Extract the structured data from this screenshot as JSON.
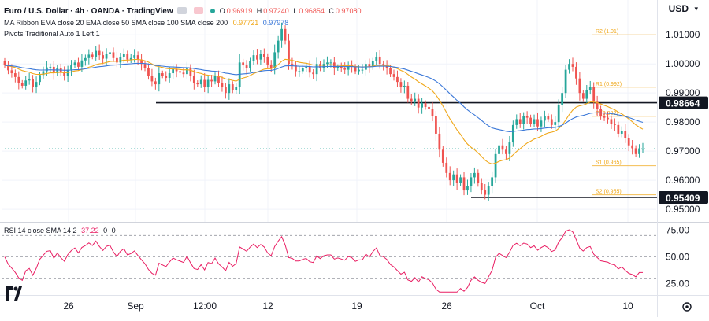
{
  "header": {
    "symbol_title": "Euro / U.S. Dollar",
    "interval": "4h",
    "exchange": "OANDA",
    "platform": "TradingView",
    "ohlc": {
      "O": "0.96919",
      "H": "0.97240",
      "L": "0.96854",
      "C": "0.97080"
    },
    "ma_ribbon_label": "MA Ribbon EMA close 20 EMA close 50 SMA close 100 SMA close 200",
    "ma_ribbon_values": [
      "0.97721",
      "0.97978"
    ],
    "pivots_label": "Pivots Traditional Auto 1 Left 1",
    "rsi_label": "RSI 14 close SMA 14 2",
    "rsi_values": [
      "37.22",
      "0",
      "0"
    ],
    "currency": "USD"
  },
  "colors": {
    "up": "#26a69a",
    "down": "#ef5350",
    "ema20": "#f0a81a",
    "ema50": "#3b78d8",
    "pivot": "#f0a81a",
    "rsi": "#e91e63",
    "level": "#131722"
  },
  "chart_data": [
    {
      "type": "candlestick",
      "title": "Euro / U.S. Dollar · 4h · OANDA",
      "x_ticks": [
        "26",
        "Sep",
        "12:00",
        "12",
        "19",
        "26",
        "Oct",
        "10"
      ],
      "y_ticks": [
        "1.01000",
        "1.00000",
        "0.99000",
        "0.98000",
        "0.97000",
        "0.96000",
        "0.95000"
      ],
      "ylim": [
        0.9484,
        1.0198
      ],
      "current_price": 0.9708,
      "closes": [
        0.9995,
        0.9978,
        0.9968,
        0.9955,
        0.9935,
        0.9925,
        0.9943,
        0.9948,
        0.9922,
        0.9938,
        0.9962,
        0.9975,
        0.9988,
        0.999,
        0.9968,
        0.9985,
        0.997,
        0.9958,
        0.998,
        0.9995,
        1.0005,
        0.999,
        1.0012,
        1.002,
        1.0032,
        1.0025,
        1.0045,
        1.003,
        1.0018,
        1.0035,
        1.004,
        1.002,
        1.0005,
        1.0025,
        1.0035,
        1.0015,
        1.002,
        1.003,
        1.0015,
        1.0,
        0.9985,
        0.996,
        0.994,
        0.993,
        0.9968,
        0.996,
        0.9952,
        0.9968,
        0.9982,
        0.9975,
        0.997,
        0.9965,
        0.9985,
        0.996,
        0.9935,
        0.993,
        0.9945,
        0.992,
        0.9945,
        0.994,
        0.996,
        0.9935,
        0.992,
        0.99,
        0.993,
        0.991,
        0.992,
        1.0005,
        0.9995,
        0.9985,
        1.001,
        1.003,
        1.0015,
        1.0035,
        1.0025,
        0.9998,
        0.9985,
        1.004,
        1.008,
        1.012,
        1.008,
        1.0,
        0.9995,
        0.9975,
        0.9975,
        0.9985,
        0.999,
        0.997,
        0.9965,
        1.0,
        0.9985,
        1.0,
        1.0005,
        1.0005,
        0.9985,
        0.999,
        0.9985,
        0.998,
        0.9995,
        0.999,
        0.9975,
        0.998,
        0.998,
        1.0,
        0.999,
        1.001,
        1.0025,
        1.0,
        0.9995,
        0.9985,
        0.9965,
        0.9955,
        0.9938,
        0.992,
        0.9925,
        0.988,
        0.987,
        0.988,
        0.985,
        0.9865,
        0.9852,
        0.9845,
        0.982,
        0.976,
        0.9705,
        0.966,
        0.9625,
        0.96,
        0.962,
        0.959,
        0.961,
        0.9565,
        0.958,
        0.961,
        0.9625,
        0.959,
        0.9565,
        0.955,
        0.958,
        0.961,
        0.969,
        0.972,
        0.9705,
        0.969,
        0.973,
        0.979,
        0.981,
        0.9795,
        0.982,
        0.9815,
        0.9795,
        0.981,
        0.9785,
        0.9805,
        0.982,
        0.981,
        0.979,
        0.98,
        0.986,
        0.99,
        0.998,
        1.0,
        0.999,
        0.995,
        0.99,
        0.988,
        0.991,
        0.992,
        0.987,
        0.9845,
        0.982,
        0.9815,
        0.981,
        0.9795,
        0.979,
        0.976,
        0.977,
        0.9745,
        0.972,
        0.971,
        0.969,
        0.9708,
        0.9708
      ],
      "ema_fast": {
        "name": "EMA 20",
        "value": 0.97721
      },
      "ema_slow": {
        "name": "EMA 50",
        "value": 0.97978
      },
      "horizontal_levels": [
        {
          "price": 0.98664,
          "label": "0.98664"
        },
        {
          "price": 0.95409,
          "label": "0.95409"
        }
      ],
      "pivots": [
        {
          "name": "R2",
          "price": 1.01,
          "label": "R2 (1.01)"
        },
        {
          "name": "R1",
          "price": 0.992,
          "label": "R1 (0.992)"
        },
        {
          "name": "P",
          "price": 0.982,
          "label": "P (0.982)"
        },
        {
          "name": "S1",
          "price": 0.965,
          "label": "S1 (0.965)"
        },
        {
          "name": "S2",
          "price": 0.955,
          "label": "S2 (0.955)"
        }
      ]
    },
    {
      "type": "line",
      "title": "RSI 14 close SMA 14 2",
      "y_ticks": [
        "75.00",
        "50.00",
        "25.00"
      ],
      "ylim": [
        15,
        82
      ],
      "bands": [
        70,
        50,
        30
      ],
      "value": 37.22
    }
  ]
}
